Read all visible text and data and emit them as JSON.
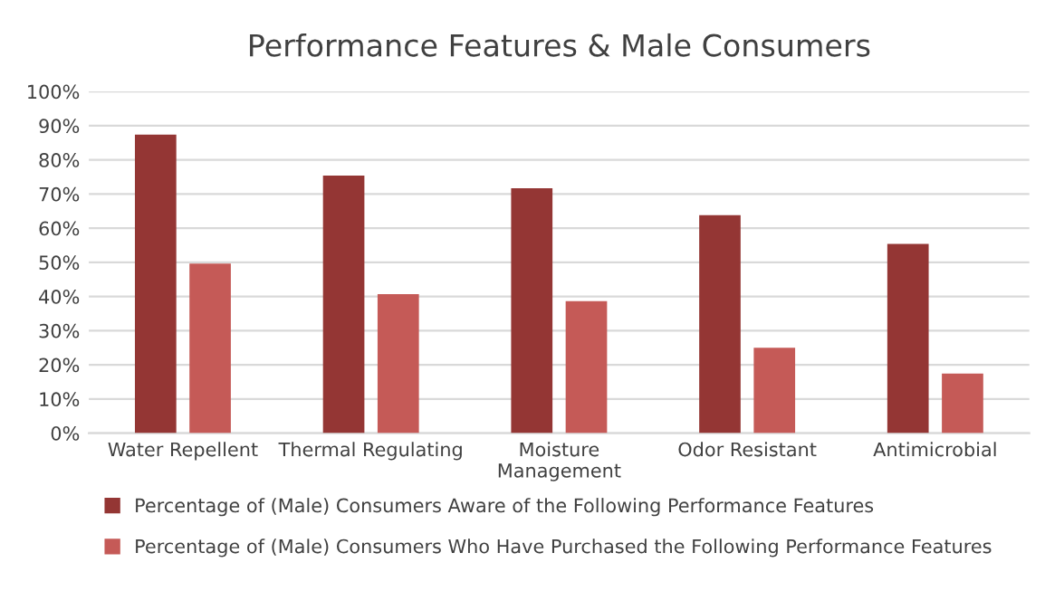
{
  "chart_data": {
    "type": "bar",
    "title": "Performance Features & Male Consumers",
    "categories": [
      "Water Repellent",
      "Thermal Regulating",
      "Moisture\nManagement",
      "Odor Resistant",
      "Antimicrobial"
    ],
    "series": [
      {
        "name": "Percentage of (Male) Consumers Aware of the Following Performance Features",
        "color": "#943634",
        "values": [
          87.4,
          75.4,
          71.7,
          63.8,
          55.4
        ]
      },
      {
        "name": "Percentage of (Male) Consumers Who Have Purchased the Following Performance Features",
        "color": "#c55a57",
        "values": [
          49.6,
          40.7,
          38.6,
          25,
          17.4
        ]
      }
    ],
    "ylim": [
      0,
      100
    ],
    "yticks": [
      {
        "value": 0,
        "label": "0%"
      },
      {
        "value": 10,
        "label": "10%"
      },
      {
        "value": 20,
        "label": "20%"
      },
      {
        "value": 30,
        "label": "30%"
      },
      {
        "value": 40,
        "label": "40%"
      },
      {
        "value": 50,
        "label": "50%"
      },
      {
        "value": 60,
        "label": "60%"
      },
      {
        "value": 70,
        "label": "70%"
      },
      {
        "value": 80,
        "label": "80%"
      },
      {
        "value": 90,
        "label": "90%"
      },
      {
        "value": 100,
        "label": "100%"
      }
    ],
    "grid": "y",
    "legend": "bottom"
  }
}
